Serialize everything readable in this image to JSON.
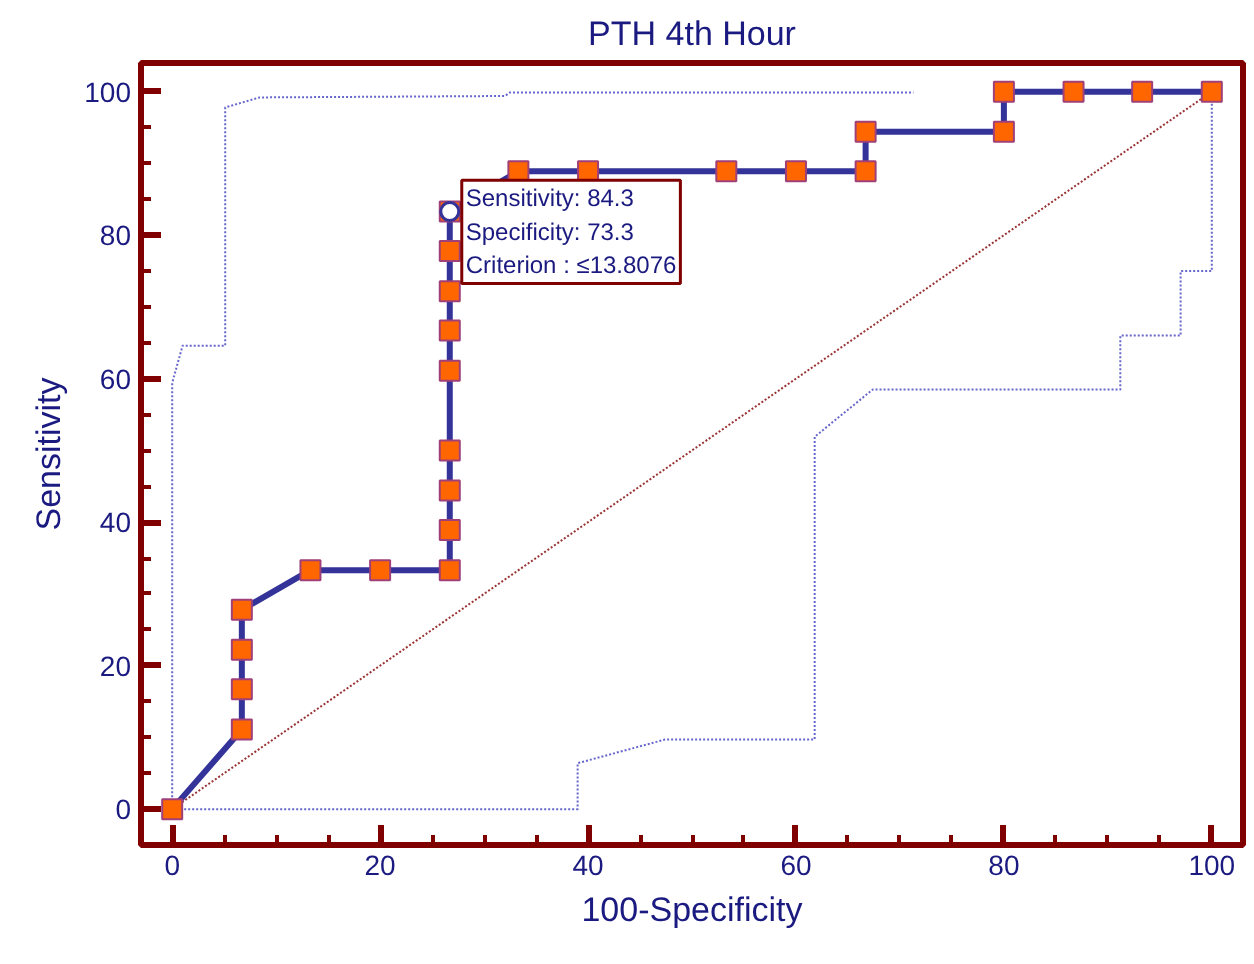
{
  "chart_data": {
    "type": "line",
    "title": "PTH 4th Hour",
    "xlabel": "100-Specificity",
    "ylabel": "Sensitivity",
    "xlim": [
      -3,
      103
    ],
    "ylim": [
      -5,
      104
    ],
    "xticks": [
      0,
      20,
      40,
      60,
      80,
      100
    ],
    "yticks": [
      0,
      20,
      40,
      60,
      80,
      100
    ],
    "grid": false,
    "series": [
      {
        "color": "#6666cc",
        "line_style": "dotted",
        "marker": "none",
        "x": [
          0,
          0,
          1.0,
          5.1,
          5.1,
          8.4,
          32,
          32.5,
          71.3
        ],
        "values": [
          0,
          59.4,
          64.6,
          64.6,
          97.8,
          99.2,
          99.4,
          99.9,
          99.9
        ]
      },
      {
        "color": "#6666cc",
        "line_style": "dotted",
        "marker": "none",
        "x": [
          0,
          39,
          39,
          47.4,
          61.8,
          61.8,
          67.4,
          91.2,
          91.2,
          97,
          97,
          100,
          100
        ],
        "values": [
          0,
          0,
          6.4,
          9.7,
          9.7,
          51.9,
          58.5,
          58.5,
          66,
          66,
          75,
          75,
          100
        ]
      },
      {
        "color": "#993333",
        "line_style": "dotted",
        "marker": "none",
        "x": [
          0,
          100
        ],
        "values": [
          0,
          100
        ]
      },
      {
        "color": "#333399",
        "line_style": "solid",
        "marker": "square",
        "x": [
          0,
          6.7,
          6.7,
          6.7,
          6.7,
          13.3,
          20,
          26.7,
          26.7,
          26.7,
          26.7,
          26.7,
          26.7,
          26.7,
          26.7,
          26.7,
          33.3,
          40,
          53.3,
          60,
          66.7,
          66.7,
          80,
          80,
          86.7,
          93.3,
          100
        ],
        "values": [
          0,
          11.1,
          16.7,
          22.2,
          27.8,
          33.3,
          33.3,
          33.3,
          38.9,
          44.4,
          50,
          61.1,
          66.7,
          72.2,
          77.8,
          83.3,
          88.9,
          88.9,
          88.9,
          88.9,
          88.9,
          94.4,
          94.4,
          100,
          100,
          100,
          100
        ]
      }
    ],
    "annotations": [
      {
        "text": "Sensitivity: 84.3\nSpecificity: 73.3\nCriterion : ≤13.8076",
        "x": 26.7,
        "y": 83.3
      }
    ]
  }
}
